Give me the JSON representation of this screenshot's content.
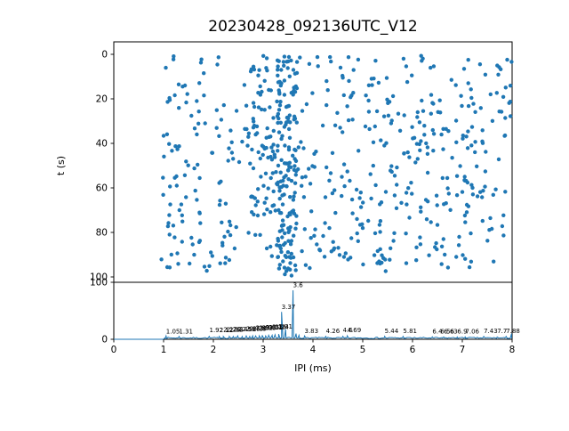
{
  "figure": {
    "title": "20230428_092136UTC_V12",
    "background": "#ffffff",
    "accent_color": "#1f77b4",
    "axis_color": "#000000"
  },
  "chart_data": [
    {
      "type": "scatter",
      "role": "top-panel",
      "ylabel": "t (s)",
      "xlim": [
        0,
        8
      ],
      "ylim": [
        100,
        0
      ],
      "y_inverted": true,
      "yticks": [
        0,
        20,
        40,
        60,
        80,
        100
      ],
      "grid": false,
      "marker_color": "#1f77b4",
      "marker_radius": 2.2,
      "point_generator": {
        "seed": 20230428,
        "clusters": [
          {
            "n": 540,
            "x_min": 0.95,
            "x_max": 8.0,
            "t_min": 0.5,
            "t_max": 97.5
          },
          {
            "n": 140,
            "x_min": 3.28,
            "x_max": 3.68,
            "t_min": 0.5,
            "t_max": 99.5
          },
          {
            "n": 50,
            "x_min": 2.7,
            "x_max": 3.3,
            "t_min": 5.0,
            "t_max": 75.0
          }
        ]
      }
    },
    {
      "type": "line",
      "role": "bottom-panel",
      "xlabel": "IPI (ms)",
      "xlim": [
        0,
        8
      ],
      "ylim": [
        0,
        100
      ],
      "xticks": [
        0,
        1,
        2,
        3,
        4,
        5,
        6,
        7,
        8
      ],
      "yticks": [
        0,
        100
      ],
      "grid": false,
      "line_color": "#1f77b4",
      "baseline": {
        "seed": 7,
        "flat_until_x": 1.0,
        "noise_min": 1.2,
        "noise_max": 3.6,
        "sample_step": 0.03
      },
      "peaks": [
        {
          "x": 1.05,
          "v": 6
        },
        {
          "x": 1.31,
          "v": 5
        },
        {
          "x": 1.92,
          "v": 5
        },
        {
          "x": 2.12,
          "v": 5
        },
        {
          "x": 2.2,
          "v": 5
        },
        {
          "x": 2.32,
          "v": 5
        },
        {
          "x": 2.4,
          "v": 5
        },
        {
          "x": 2.49,
          "v": 6
        },
        {
          "x": 2.58,
          "v": 5
        },
        {
          "x": 2.66,
          "v": 6
        },
        {
          "x": 2.73,
          "v": 5
        },
        {
          "x": 2.79,
          "v": 6
        },
        {
          "x": 2.85,
          "v": 6
        },
        {
          "x": 2.92,
          "v": 6
        },
        {
          "x": 2.98,
          "v": 7
        },
        {
          "x": 3.05,
          "v": 6
        },
        {
          "x": 3.11,
          "v": 7
        },
        {
          "x": 3.18,
          "v": 7
        },
        {
          "x": 3.24,
          "v": 8
        },
        {
          "x": 3.31,
          "v": 9
        },
        {
          "x": 3.37,
          "v": 48
        },
        {
          "x": 3.45,
          "v": 18
        },
        {
          "x": 3.6,
          "v": 86
        },
        {
          "x": 3.66,
          "v": 10
        },
        {
          "x": 3.72,
          "v": 7
        },
        {
          "x": 3.83,
          "v": 6
        },
        {
          "x": 4.26,
          "v": 5
        },
        {
          "x": 4.6,
          "v": 5
        },
        {
          "x": 4.69,
          "v": 6
        },
        {
          "x": 5.44,
          "v": 5
        },
        {
          "x": 5.81,
          "v": 5
        },
        {
          "x": 6.4,
          "v": 4
        },
        {
          "x": 6.63,
          "v": 4
        },
        {
          "x": 6.9,
          "v": 4
        },
        {
          "x": 7.06,
          "v": 4
        },
        {
          "x": 7.43,
          "v": 5
        },
        {
          "x": 7.7,
          "v": 4
        },
        {
          "x": 7.88,
          "v": 5
        },
        {
          "x": 7.99,
          "v": 10
        }
      ],
      "annotations": [
        {
          "x": 1.05,
          "label": "1.05",
          "v": 7
        },
        {
          "x": 1.31,
          "label": "1.31",
          "v": 7
        },
        {
          "x": 1.92,
          "label": "1.92",
          "v": 9
        },
        {
          "x": 2.12,
          "label": "2.12",
          "v": 9
        },
        {
          "x": 2.2,
          "label": "2.2",
          "v": 10
        },
        {
          "x": 2.26,
          "label": "2.26",
          "v": 10
        },
        {
          "x": 2.32,
          "label": "2.32",
          "v": 10
        },
        {
          "x": 2.4,
          "label": "2.4",
          "v": 11
        },
        {
          "x": 2.49,
          "label": "2.49",
          "v": 11
        },
        {
          "x": 2.58,
          "label": "2.58",
          "v": 11
        },
        {
          "x": 2.66,
          "label": "2.66",
          "v": 12
        },
        {
          "x": 2.73,
          "label": "2.73",
          "v": 12
        },
        {
          "x": 2.79,
          "label": "2.79",
          "v": 12
        },
        {
          "x": 2.85,
          "label": "2.85",
          "v": 13
        },
        {
          "x": 2.92,
          "label": "2.92",
          "v": 13
        },
        {
          "x": 2.98,
          "label": "2.98",
          "v": 13
        },
        {
          "x": 3.05,
          "label": "3.05",
          "v": 14
        },
        {
          "x": 3.11,
          "label": "3.11",
          "v": 14
        },
        {
          "x": 3.18,
          "label": "3.18",
          "v": 15
        },
        {
          "x": 3.24,
          "label": "3.24",
          "v": 15
        },
        {
          "x": 3.31,
          "label": "3.31",
          "v": 16
        },
        {
          "x": 3.37,
          "label": "3.37",
          "v": 50
        },
        {
          "x": 3.6,
          "label": "3.6",
          "v": 88
        },
        {
          "x": 3.83,
          "label": "3.83",
          "v": 8
        },
        {
          "x": 4.26,
          "label": "4.26",
          "v": 8
        },
        {
          "x": 4.6,
          "label": "4.6",
          "v": 9
        },
        {
          "x": 4.69,
          "label": "4.69",
          "v": 9
        },
        {
          "x": 5.44,
          "label": "5.44",
          "v": 8
        },
        {
          "x": 5.81,
          "label": "5.81",
          "v": 8
        },
        {
          "x": 6.4,
          "label": "6.4",
          "v": 7
        },
        {
          "x": 6.56,
          "label": "6.56",
          "v": 7
        },
        {
          "x": 6.63,
          "label": "6.63",
          "v": 7
        },
        {
          "x": 6.9,
          "label": "6.9",
          "v": 7
        },
        {
          "x": 7.06,
          "label": "7.06",
          "v": 7
        },
        {
          "x": 7.43,
          "label": "7.43",
          "v": 8
        },
        {
          "x": 7.7,
          "label": "7.7",
          "v": 8
        },
        {
          "x": 7.88,
          "label": "7.88",
          "v": 8
        }
      ]
    }
  ]
}
